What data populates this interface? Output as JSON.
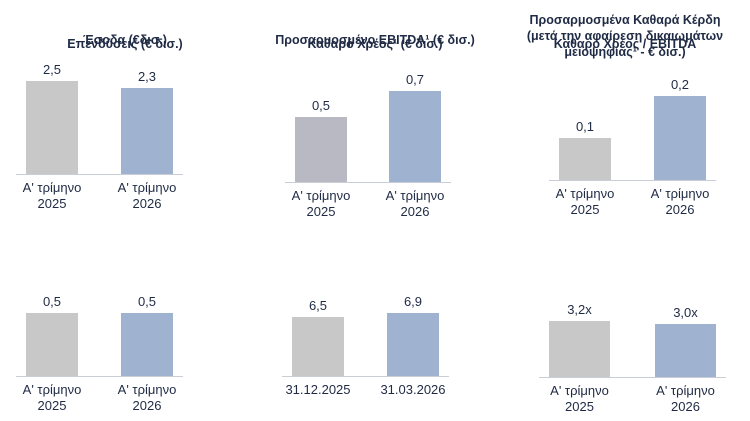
{
  "chart_data": [
    {
      "type": "bar",
      "title": [
        "Έσοδα (€δισ.)"
      ],
      "categories": [
        [
          "Α' τρίμηνο",
          "2025"
        ],
        [
          "Α' τρίμηνο",
          "2026"
        ]
      ],
      "values": [
        2.5,
        2.3
      ],
      "value_labels": [
        "2,5",
        "2,3"
      ],
      "ylim": [
        0,
        2.5
      ],
      "colors": [
        "#c8c8c8",
        "#9fb3d1"
      ]
    },
    {
      "type": "bar",
      "title": [
        "Προσαρμοσμένο EBITDA¹ (€ δισ.)"
      ],
      "categories": [
        [
          "Α' τρίμηνο",
          "2025"
        ],
        [
          "Α' τρίμηνο",
          "2026"
        ]
      ],
      "values": [
        0.5,
        0.7
      ],
      "value_labels": [
        "0,5",
        "0,7"
      ],
      "ylim": [
        0,
        0.7
      ],
      "colors": [
        "#b9b9c3",
        "#9fb3d1"
      ]
    },
    {
      "type": "bar",
      "title": [
        "Προσαρμοσμένα Καθαρά Κέρδη",
        "(μετά την αφαίρεση δικαιωμάτων",
        "μειοψηφίας¹ - € δισ.)"
      ],
      "categories": [
        [
          "Α' τρίμηνο",
          "2025"
        ],
        [
          "Α' τρίμηνο",
          "2026"
        ]
      ],
      "values": [
        0.1,
        0.2
      ],
      "value_labels": [
        "0,1",
        "0,2"
      ],
      "ylim": [
        0,
        0.2
      ],
      "colors": [
        "#c8c8c8",
        "#9fb3d1"
      ]
    },
    {
      "type": "bar",
      "title": [
        "Επενδύσεις (€ δισ.)"
      ],
      "categories": [
        [
          "Α' τρίμηνο",
          "2025"
        ],
        [
          "Α' τρίμηνο",
          "2026"
        ]
      ],
      "values": [
        0.5,
        0.5
      ],
      "value_labels": [
        "0,5",
        "0,5"
      ],
      "ylim": [
        0,
        0.5
      ],
      "colors": [
        "#c8c8c8",
        "#9fb3d1"
      ]
    },
    {
      "type": "bar",
      "title": [
        "Καθαρό Χρέος¹ (€ δισ.)"
      ],
      "categories": [
        [
          "31.12.2025"
        ],
        [
          "31.03.2026"
        ]
      ],
      "values": [
        6.5,
        6.9
      ],
      "value_labels": [
        "6,5",
        "6,9"
      ],
      "ylim": [
        0,
        6.9
      ],
      "colors": [
        "#c8c8c8",
        "#9fb3d1"
      ]
    },
    {
      "type": "bar",
      "title": [
        "Καθαρό Χρέος / EBITDA"
      ],
      "categories": [
        [
          "Α' τρίμηνο",
          "2025"
        ],
        [
          "Α' τρίμηνο",
          "2026"
        ]
      ],
      "values": [
        3.2,
        3.0
      ],
      "value_labels": [
        "3,2x",
        "3,0x"
      ],
      "ylim": [
        0,
        3.2
      ],
      "colors": [
        "#c8c8c8",
        "#9fb3d1"
      ]
    }
  ]
}
